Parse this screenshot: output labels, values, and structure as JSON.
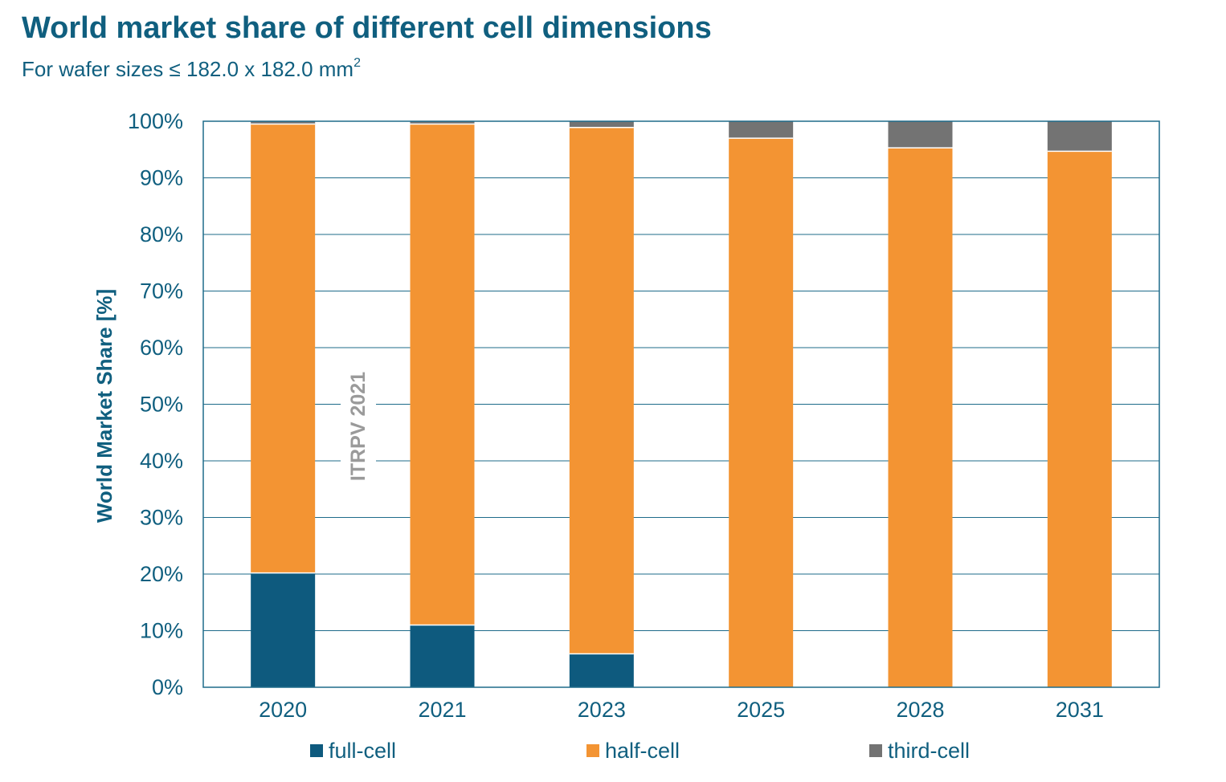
{
  "title": "World market share of different cell dimensions",
  "subtitle": "For wafer sizes ≤ 182.0 x 182.0 mm",
  "subtitle_sup": "2",
  "watermark": "ITRPV 2021",
  "colors": {
    "full-cell": "#0e5a7e",
    "half-cell": "#f39433",
    "third-cell": "#737373",
    "text": "#105f7f",
    "grid": "#1e6b8a",
    "watermark": "#9a9a9a"
  },
  "chart_data": {
    "type": "bar",
    "stacked": true,
    "categories": [
      "2020",
      "2021",
      "2023",
      "2025",
      "2028",
      "2031"
    ],
    "series": [
      {
        "name": "full-cell",
        "values": [
          20.2,
          11.0,
          5.9,
          0,
          0,
          0
        ]
      },
      {
        "name": "half-cell",
        "values": [
          79.3,
          88.5,
          93.0,
          97.0,
          95.3,
          94.7
        ]
      },
      {
        "name": "third-cell",
        "values": [
          0.5,
          0.5,
          1.1,
          3.0,
          4.7,
          5.3
        ]
      }
    ],
    "ylabel": "World Market Share [%]",
    "xlabel": "",
    "ylim": [
      0,
      100
    ],
    "yticks": [
      "0%",
      "10%",
      "20%",
      "30%",
      "40%",
      "50%",
      "60%",
      "70%",
      "80%",
      "90%",
      "100%"
    ],
    "grid": true,
    "legend": "bottom"
  }
}
